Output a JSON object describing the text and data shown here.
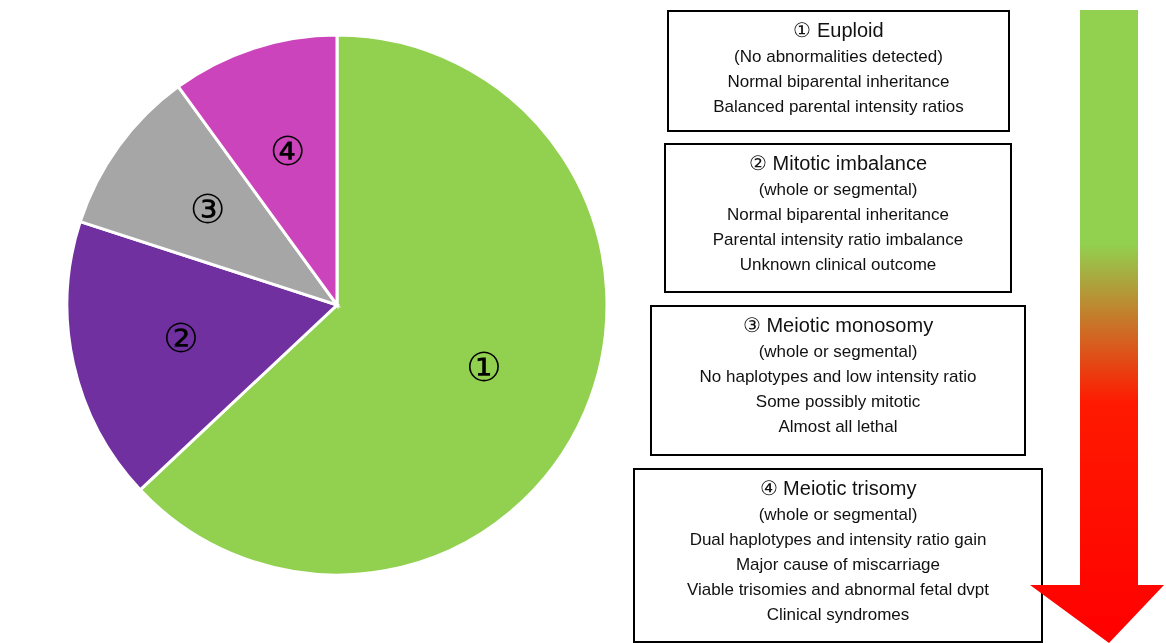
{
  "chart_data": {
    "type": "pie",
    "categories": [
      "①",
      "②",
      "③",
      "④"
    ],
    "values": [
      63,
      17,
      10,
      10
    ],
    "colors": [
      "#92d050",
      "#7030a0",
      "#a6a6a6",
      "#cc44bb"
    ],
    "annotations": [
      "① Euploid\n(No abnormalities detected)\nNormal biparental inheritance\nBalanced parental intensity ratios",
      "② Mitotic imbalance\n(whole or segmental)\nNormal biparental inheritance\nParental intensity ratio imbalance\nUnknown clinical outcome",
      "③ Meiotic monosomy\n(whole or segmental)\nNo haplotypes and low intensity ratio\nSome possibly mitotic\nAlmost all lethal",
      "④ Meiotic trisomy\n(whole or segmental)\nDual haplotypes and intensity ratio gain\nMajor cause of miscarriage\nViable trisomies and abnormal fetal dvpt\nClinical syndromes"
    ]
  }
}
